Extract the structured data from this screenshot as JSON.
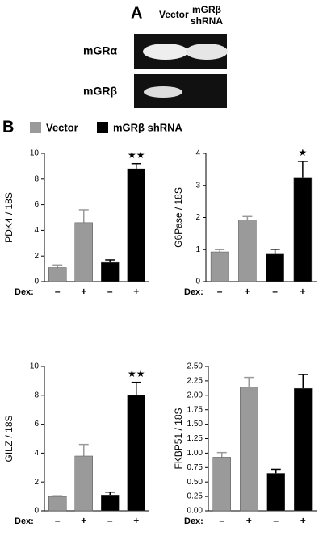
{
  "panel_a": {
    "label": "A",
    "columns": [
      [
        "Vector"
      ],
      [
        "mGRβ",
        "shRNA"
      ]
    ],
    "rows": [
      "mGRα",
      "mGRβ"
    ]
  },
  "panel_b": {
    "label": "B",
    "legend": [
      {
        "name": "Vector",
        "color": "#9a9a9a"
      },
      {
        "name": "mGRβ shRNA",
        "color": "#000000"
      }
    ]
  },
  "chart_data": [
    {
      "type": "bar",
      "y_label": "PDK4 / 18S",
      "x_label": "Dex:",
      "categories": [
        "–",
        "+",
        "–",
        "+"
      ],
      "values": [
        1.1,
        4.6,
        1.5,
        8.8
      ],
      "errors": [
        0.2,
        1.0,
        0.2,
        0.4
      ],
      "colors": [
        "#9a9a9a",
        "#9a9a9a",
        "#000000",
        "#000000"
      ],
      "annotations": [
        null,
        null,
        null,
        "★★"
      ],
      "ylim": [
        0,
        10
      ],
      "yticks": [
        0,
        2,
        4,
        6,
        8,
        10
      ]
    },
    {
      "type": "bar",
      "y_label": "G6Pase / 18S",
      "x_label": "Dex:",
      "categories": [
        "–",
        "+",
        "–",
        "+"
      ],
      "values": [
        0.93,
        1.93,
        0.86,
        3.25
      ],
      "errors": [
        0.07,
        0.1,
        0.15,
        0.5
      ],
      "colors": [
        "#9a9a9a",
        "#9a9a9a",
        "#000000",
        "#000000"
      ],
      "annotations": [
        null,
        null,
        null,
        "★"
      ],
      "ylim": [
        0,
        4
      ],
      "yticks": [
        0,
        1,
        2,
        3,
        4
      ]
    },
    {
      "type": "bar",
      "y_label": "GILZ / 18S",
      "x_label": "Dex:",
      "categories": [
        "–",
        "+",
        "–",
        "+"
      ],
      "values": [
        1.0,
        3.8,
        1.1,
        8.0
      ],
      "errors": [
        0.05,
        0.8,
        0.2,
        0.9
      ],
      "colors": [
        "#9a9a9a",
        "#9a9a9a",
        "#000000",
        "#000000"
      ],
      "annotations": [
        null,
        null,
        null,
        "★★"
      ],
      "ylim": [
        0,
        10
      ],
      "yticks": [
        0,
        2,
        4,
        6,
        8,
        10
      ]
    },
    {
      "type": "bar",
      "y_label": "FKBP51 / 18S",
      "x_label": "Dex:",
      "categories": [
        "–",
        "+",
        "–",
        "+"
      ],
      "values": [
        0.93,
        2.14,
        0.65,
        2.12
      ],
      "errors": [
        0.08,
        0.17,
        0.07,
        0.24
      ],
      "colors": [
        "#9a9a9a",
        "#9a9a9a",
        "#000000",
        "#000000"
      ],
      "ylim": [
        0,
        2.5
      ],
      "yticks": [
        {
          "value": 0,
          "label": "0.00"
        },
        {
          "value": 0.25,
          "label": "0.25"
        },
        {
          "value": 0.5,
          "label": "0.50"
        },
        {
          "value": 0.75,
          "label": "0.75"
        },
        {
          "value": 1,
          "label": "1.00"
        },
        {
          "value": 1.25,
          "label": "1.25"
        },
        {
          "value": 1.5,
          "label": "1.50"
        },
        {
          "value": 1.75,
          "label": "1.75"
        },
        {
          "value": 2,
          "label": "2.00"
        },
        {
          "value": 2.25,
          "label": "2.25"
        },
        {
          "value": 2.5,
          "label": "2.50"
        }
      ]
    }
  ]
}
